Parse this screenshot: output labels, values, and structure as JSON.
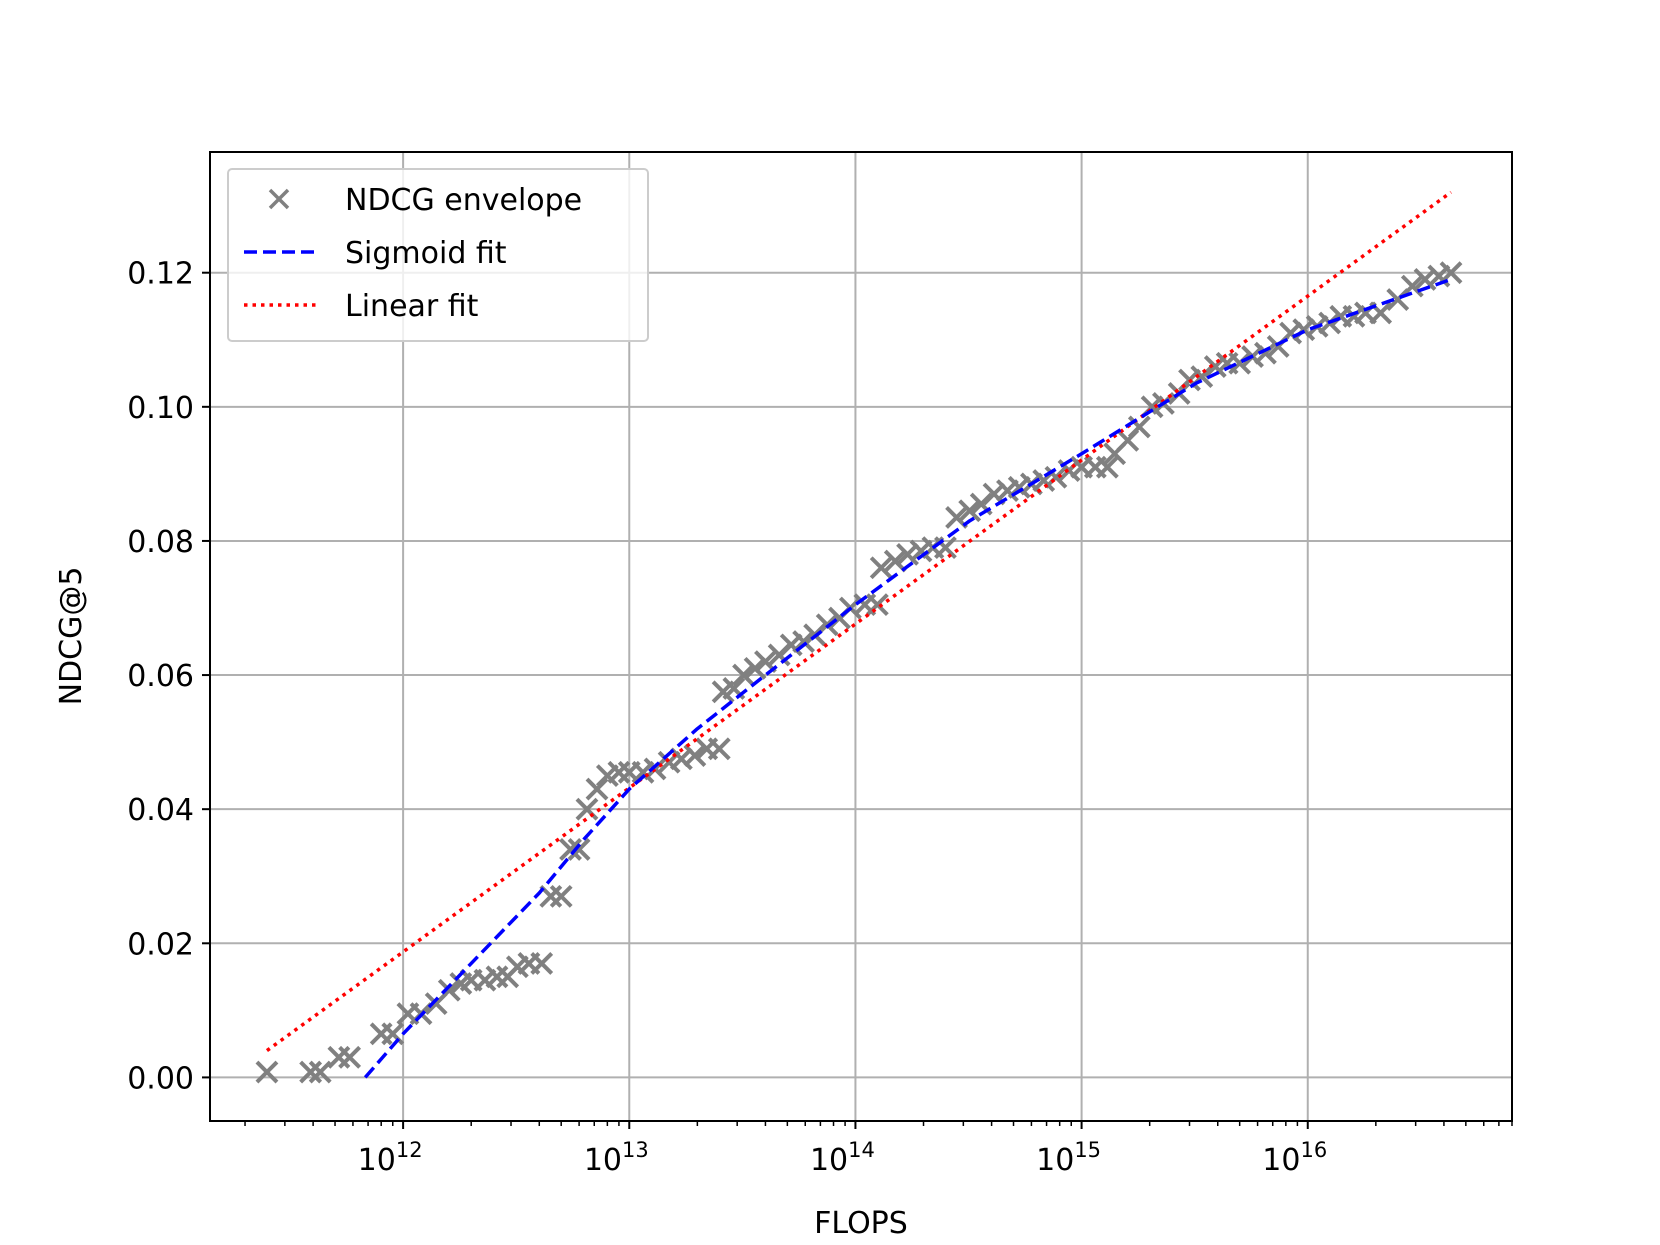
{
  "chart_data": {
    "type": "scatter",
    "xlabel": "FLOPS",
    "ylabel": "NDCG@5",
    "xscale": "log",
    "xlim": [
      140000000000.0,
      8e+16
    ],
    "ylim": [
      -0.0065,
      0.138
    ],
    "grid": true,
    "legend_position": "top-left",
    "x_tick_base": "10",
    "x_ticks": [
      {
        "value": 1000000000000.0,
        "exponent": "12"
      },
      {
        "value": 10000000000000.0,
        "exponent": "13"
      },
      {
        "value": 100000000000000.0,
        "exponent": "14"
      },
      {
        "value": 1000000000000000.0,
        "exponent": "15"
      },
      {
        "value": 1e+16,
        "exponent": "16"
      }
    ],
    "y_ticks": [
      {
        "value": 0.0,
        "label": "0.00"
      },
      {
        "value": 0.02,
        "label": "0.02"
      },
      {
        "value": 0.04,
        "label": "0.04"
      },
      {
        "value": 0.06,
        "label": "0.06"
      },
      {
        "value": 0.08,
        "label": "0.08"
      },
      {
        "value": 0.1,
        "label": "0.10"
      },
      {
        "value": 0.12,
        "label": "0.12"
      }
    ],
    "series": [
      {
        "name": "NDCG envelope",
        "style": "marker-x",
        "color": "#808080",
        "points": [
          [
            250000000000.0,
            0.0008
          ],
          [
            390000000000.0,
            0.0008
          ],
          [
            430000000000.0,
            0.0008
          ],
          [
            520000000000.0,
            0.003
          ],
          [
            580000000000.0,
            0.003
          ],
          [
            800000000000.0,
            0.0065
          ],
          [
            900000000000.0,
            0.0065
          ],
          [
            1050000000000.0,
            0.0095
          ],
          [
            1200000000000.0,
            0.0095
          ],
          [
            1400000000000.0,
            0.011
          ],
          [
            1600000000000.0,
            0.013
          ],
          [
            1800000000000.0,
            0.014
          ],
          [
            2000000000000.0,
            0.0145
          ],
          [
            2300000000000.0,
            0.0145
          ],
          [
            2600000000000.0,
            0.015
          ],
          [
            2900000000000.0,
            0.015
          ],
          [
            3200000000000.0,
            0.0165
          ],
          [
            3600000000000.0,
            0.017
          ],
          [
            4100000000000.0,
            0.017
          ],
          [
            4500000000000.0,
            0.027
          ],
          [
            5000000000000.0,
            0.027
          ],
          [
            5500000000000.0,
            0.034
          ],
          [
            6000000000000.0,
            0.034
          ],
          [
            6500000000000.0,
            0.04
          ],
          [
            7200000000000.0,
            0.043
          ],
          [
            8000000000000.0,
            0.045
          ],
          [
            9000000000000.0,
            0.0455
          ],
          [
            10000000000000.0,
            0.0455
          ],
          [
            11500000000000.0,
            0.0455
          ],
          [
            13000000000000.0,
            0.046
          ],
          [
            15000000000000.0,
            0.047
          ],
          [
            17000000000000.0,
            0.0475
          ],
          [
            19500000000000.0,
            0.048
          ],
          [
            22000000000000.0,
            0.049
          ],
          [
            25000000000000.0,
            0.049
          ],
          [
            26000000000000.0,
            0.0575
          ],
          [
            29000000000000.0,
            0.058
          ],
          [
            32000000000000.0,
            0.06
          ],
          [
            36000000000000.0,
            0.061
          ],
          [
            40000000000000.0,
            0.062
          ],
          [
            46000000000000.0,
            0.063
          ],
          [
            52000000000000.0,
            0.0645
          ],
          [
            59000000000000.0,
            0.065
          ],
          [
            66000000000000.0,
            0.066
          ],
          [
            75000000000000.0,
            0.0675
          ],
          [
            85000000000000.0,
            0.0685
          ],
          [
            95000000000000.0,
            0.07
          ],
          [
            110000000000000.0,
            0.0705
          ],
          [
            125000000000000.0,
            0.0705
          ],
          [
            130000000000000.0,
            0.076
          ],
          [
            150000000000000.0,
            0.077
          ],
          [
            170000000000000.0,
            0.078
          ],
          [
            195000000000000.0,
            0.0785
          ],
          [
            220000000000000.0,
            0.079
          ],
          [
            250000000000000.0,
            0.079
          ],
          [
            280000000000000.0,
            0.0835
          ],
          [
            320000000000000.0,
            0.0845
          ],
          [
            360000000000000.0,
            0.0855
          ],
          [
            410000000000000.0,
            0.087
          ],
          [
            470000000000000.0,
            0.0875
          ],
          [
            530000000000000.0,
            0.088
          ],
          [
            600000000000000.0,
            0.0885
          ],
          [
            680000000000000.0,
            0.089
          ],
          [
            770000000000000.0,
            0.0895
          ],
          [
            880000000000000.0,
            0.0905
          ],
          [
            1000000000000000.0,
            0.091
          ],
          [
            1150000000000000.0,
            0.091
          ],
          [
            1300000000000000.0,
            0.091
          ],
          [
            1400000000000000.0,
            0.093
          ],
          [
            1600000000000000.0,
            0.095
          ],
          [
            1800000000000000.0,
            0.097
          ],
          [
            2050000000000000.0,
            0.1
          ],
          [
            2300000000000000.0,
            0.1005
          ],
          [
            2700000000000000.0,
            0.102
          ],
          [
            3000000000000000.0,
            0.104
          ],
          [
            3400000000000000.0,
            0.1045
          ],
          [
            3900000000000000.0,
            0.106
          ],
          [
            4400000000000000.0,
            0.1065
          ],
          [
            5000000000000000.0,
            0.1065
          ],
          [
            5700000000000000.0,
            0.1075
          ],
          [
            6500000000000000.0,
            0.108
          ],
          [
            7400000000000000.0,
            0.109
          ],
          [
            8400000000000000.0,
            0.111
          ],
          [
            9600000000000000.0,
            0.1115
          ],
          [
            1.1e+16,
            0.112
          ],
          [
            1.25e+16,
            0.1125
          ],
          [
            1.4e+16,
            0.1135
          ],
          [
            1.6e+16,
            0.1135
          ],
          [
            1.8e+16,
            0.114
          ],
          [
            2.1e+16,
            0.114
          ],
          [
            2.5e+16,
            0.116
          ],
          [
            2.9e+16,
            0.118
          ],
          [
            3.3e+16,
            0.119
          ],
          [
            3.8e+16,
            0.1195
          ],
          [
            4.3e+16,
            0.12
          ]
        ]
      },
      {
        "name": "Sigmoid fit",
        "style": "dashed",
        "color": "#0000ff",
        "points": [
          [
            680000000000.0,
            0.0
          ],
          [
            1000000000000.0,
            0.0065
          ],
          [
            2000000000000.0,
            0.017
          ],
          [
            4000000000000.0,
            0.0275
          ],
          [
            6300000000000.0,
            0.0355
          ],
          [
            10000000000000.0,
            0.043
          ],
          [
            20000000000000.0,
            0.052
          ],
          [
            40000000000000.0,
            0.06
          ],
          [
            100000000000000.0,
            0.0705
          ],
          [
            320000000000000.0,
            0.083
          ],
          [
            1000000000000000.0,
            0.093
          ],
          [
            3200000000000000.0,
            0.1035
          ],
          [
            1e+16,
            0.1115
          ],
          [
            4.3e+16,
            0.119
          ]
        ]
      },
      {
        "name": "Linear fit",
        "style": "dotted",
        "color": "#ff0000",
        "points": [
          [
            250000000000.0,
            0.004
          ],
          [
            4.3e+16,
            0.132
          ]
        ]
      }
    ]
  }
}
